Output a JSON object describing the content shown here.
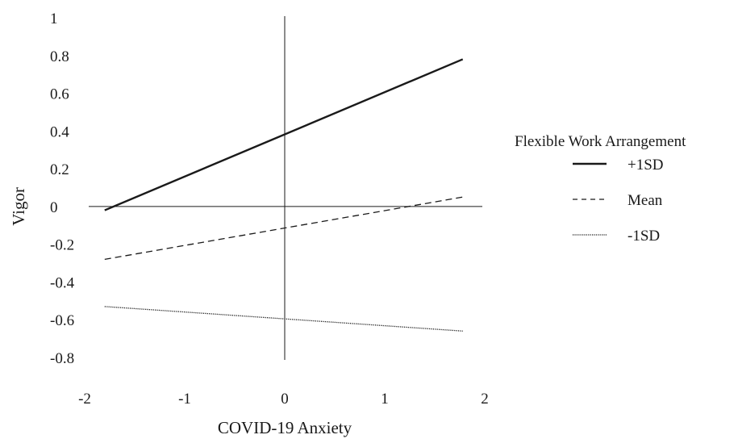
{
  "chart_data": {
    "type": "line",
    "title": "",
    "xlabel": "COVID-19 Anxiety",
    "ylabel": "Vigor",
    "xlim": [
      -2,
      2
    ],
    "ylim": [
      -0.8,
      1
    ],
    "x_ticks": [
      "-2",
      "-1",
      "0",
      "1",
      "2"
    ],
    "y_ticks": [
      "1",
      "0.8",
      "0.6",
      "0.4",
      "0.2",
      "0",
      "-0.2",
      "-0.4",
      "-0.6",
      "-0.8"
    ],
    "grid": false,
    "axes_cross_at_origin": true,
    "legend_title": "Flexible Work Arrangement",
    "legend_position": "right",
    "series": [
      {
        "name": "+1SD",
        "style": "solid",
        "x": [
          -1.8,
          1.78
        ],
        "y": [
          -0.02,
          0.78
        ]
      },
      {
        "name": "Mean",
        "style": "dashed",
        "x": [
          -1.8,
          1.78
        ],
        "y": [
          -0.28,
          0.05
        ]
      },
      {
        "name": "-1SD",
        "style": "dotted",
        "x": [
          -1.8,
          1.78
        ],
        "y": [
          -0.53,
          -0.66
        ]
      }
    ],
    "colors": {
      "line": "#1a1a1a",
      "axis": "#1a1a1a"
    }
  }
}
